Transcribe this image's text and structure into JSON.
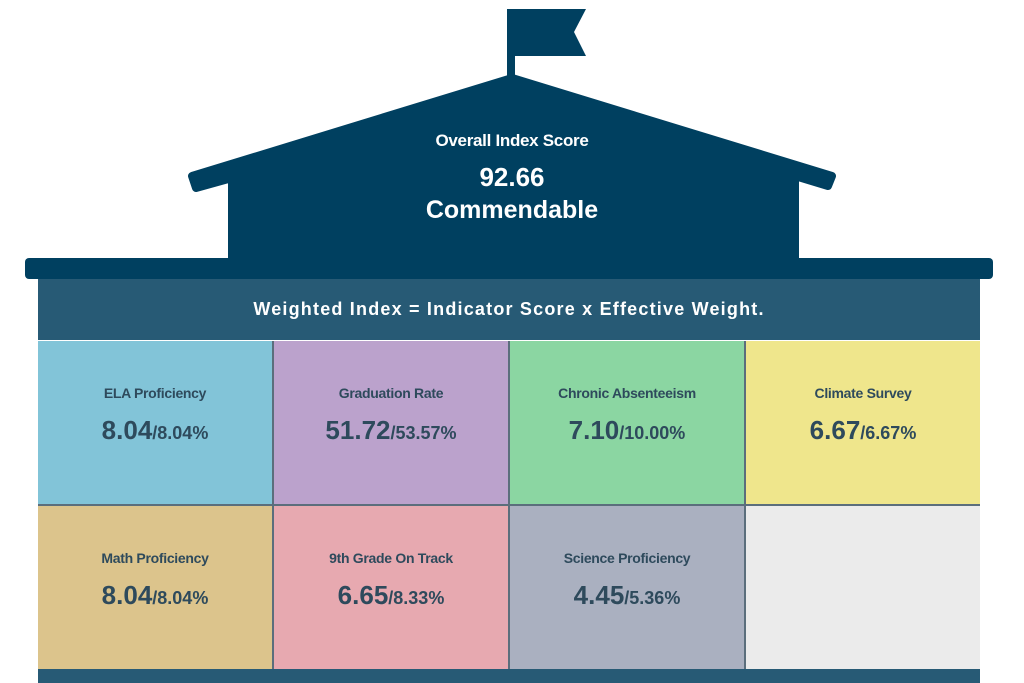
{
  "overall": {
    "label": "Overall Index Score",
    "score": "92.66",
    "rating": "Commendable"
  },
  "band_text": "Weighted Index = Indicator Score x Effective Weight.",
  "colors": {
    "house": "#004060",
    "band": "#275a75"
  },
  "indicators": [
    {
      "label": "ELA Proficiency",
      "score": "8.04",
      "weight": "/8.04%",
      "color": "#82c4d8"
    },
    {
      "label": "Graduation Rate",
      "score": "51.72",
      "weight": "/53.57%",
      "color": "#bba2cc"
    },
    {
      "label": "Chronic Absenteeism",
      "score": "7.10",
      "weight": "/10.00%",
      "color": "#8bd6a2"
    },
    {
      "label": "Climate Survey",
      "score": "6.67",
      "weight": "/6.67%",
      "color": "#efe68c"
    },
    {
      "label": "Math Proficiency",
      "score": "8.04",
      "weight": "/8.04%",
      "color": "#dcc48c"
    },
    {
      "label": "9th Grade On Track",
      "score": "6.65",
      "weight": "/8.33%",
      "color": "#e7a9b0"
    },
    {
      "label": "Science Proficiency",
      "score": "4.45",
      "weight": "/5.36%",
      "color": "#aab0c0"
    },
    {
      "label": "",
      "score": "",
      "weight": "",
      "color": "#ebebeb"
    }
  ]
}
